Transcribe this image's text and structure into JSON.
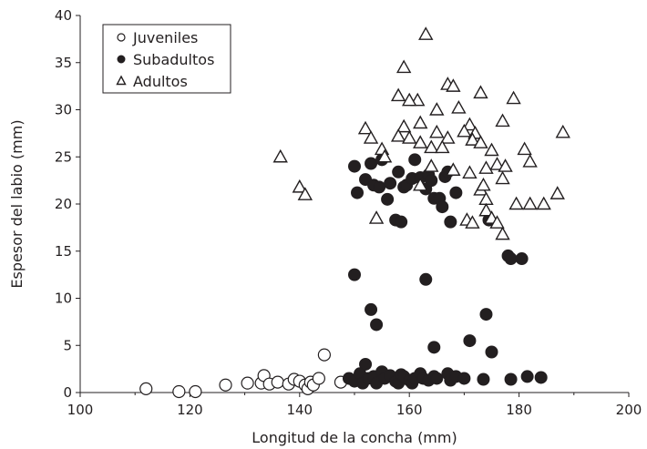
{
  "chart_data": {
    "type": "scatter",
    "xlabel": "Longitud de la concha (mm)",
    "ylabel": "Espesor del labio (mm)",
    "xlim": [
      100,
      200
    ],
    "ylim": [
      0,
      40
    ],
    "xticks": [
      100,
      120,
      140,
      160,
      180,
      200
    ],
    "yticks": [
      0,
      5,
      10,
      15,
      20,
      25,
      30,
      35,
      40
    ],
    "grid": false,
    "legend_position": "top-left",
    "series": [
      {
        "name": "Juveniles",
        "marker": "circle-open",
        "points": [
          [
            112,
            0.4
          ],
          [
            118,
            0.1
          ],
          [
            121,
            0.1
          ],
          [
            126.5,
            0.8
          ],
          [
            130.5,
            1.0
          ],
          [
            133,
            1.0
          ],
          [
            133.5,
            1.8
          ],
          [
            134.5,
            0.9
          ],
          [
            136,
            1.1
          ],
          [
            138,
            0.9
          ],
          [
            139,
            1.4
          ],
          [
            140,
            1.2
          ],
          [
            141,
            0.8
          ],
          [
            141.5,
            0.4
          ],
          [
            142,
            1.1
          ],
          [
            142.5,
            0.8
          ],
          [
            143.5,
            1.5
          ],
          [
            144.5,
            4.0
          ],
          [
            147.5,
            1.1
          ]
        ]
      },
      {
        "name": "Subadultos",
        "marker": "circle-filled",
        "points": [
          [
            150,
            24.0
          ],
          [
            150.5,
            21.2
          ],
          [
            152,
            22.6
          ],
          [
            153,
            24.3
          ],
          [
            153.5,
            22.0
          ],
          [
            154.5,
            21.8
          ],
          [
            155,
            24.7
          ],
          [
            156,
            20.5
          ],
          [
            156.5,
            22.2
          ],
          [
            157.5,
            18.3
          ],
          [
            158,
            23.4
          ],
          [
            158.5,
            18.1
          ],
          [
            159,
            21.8
          ],
          [
            159.5,
            22.0
          ],
          [
            160.5,
            22.7
          ],
          [
            161,
            24.7
          ],
          [
            162,
            22.8
          ],
          [
            163,
            21.6
          ],
          [
            163.5,
            23.1
          ],
          [
            164,
            22.5
          ],
          [
            164.5,
            20.6
          ],
          [
            165.5,
            20.6
          ],
          [
            166,
            19.7
          ],
          [
            166.5,
            22.9
          ],
          [
            167,
            23.4
          ],
          [
            167.5,
            18.1
          ],
          [
            168.5,
            21.2
          ],
          [
            174.5,
            18.3
          ],
          [
            178,
            14.5
          ],
          [
            178.5,
            14.2
          ],
          [
            180.5,
            14.2
          ],
          [
            150,
            12.5
          ],
          [
            153,
            8.8
          ],
          [
            154,
            7.2
          ],
          [
            163,
            12.0
          ],
          [
            164.5,
            4.8
          ],
          [
            171,
            5.5
          ],
          [
            174,
            8.3
          ],
          [
            175,
            4.3
          ],
          [
            149,
            1.5
          ],
          [
            150,
            1.2
          ],
          [
            151,
            2.0
          ],
          [
            151.5,
            1.0
          ],
          [
            152,
            3.0
          ],
          [
            152.5,
            1.5
          ],
          [
            153.5,
            1.7
          ],
          [
            154,
            1.0
          ],
          [
            155,
            2.2
          ],
          [
            155.5,
            1.5
          ],
          [
            156.5,
            1.8
          ],
          [
            157.5,
            1.2
          ],
          [
            158,
            1.0
          ],
          [
            158.5,
            1.9
          ],
          [
            159,
            1.7
          ],
          [
            160,
            1.3
          ],
          [
            160.5,
            1.0
          ],
          [
            161,
            1.5
          ],
          [
            162,
            2.0
          ],
          [
            162.5,
            1.5
          ],
          [
            163.5,
            1.3
          ],
          [
            164.5,
            1.7
          ],
          [
            165,
            1.5
          ],
          [
            167,
            2.0
          ],
          [
            167.5,
            1.3
          ],
          [
            168.5,
            1.7
          ],
          [
            170,
            1.5
          ],
          [
            173.5,
            1.4
          ],
          [
            178.5,
            1.4
          ],
          [
            181.5,
            1.7
          ],
          [
            184,
            1.6
          ]
        ]
      },
      {
        "name": "Adultos",
        "marker": "triangle-open",
        "points": [
          [
            163,
            38.0
          ],
          [
            159,
            34.5
          ],
          [
            167,
            32.7
          ],
          [
            168,
            32.5
          ],
          [
            173,
            31.8
          ],
          [
            158,
            31.5
          ],
          [
            161.5,
            31.0
          ],
          [
            160,
            31.0
          ],
          [
            179,
            31.2
          ],
          [
            165,
            30.0
          ],
          [
            169,
            30.2
          ],
          [
            162,
            28.6
          ],
          [
            171,
            28.4
          ],
          [
            177,
            28.8
          ],
          [
            159,
            28.2
          ],
          [
            188,
            27.6
          ],
          [
            152,
            28.0
          ],
          [
            165,
            27.6
          ],
          [
            170,
            27.7
          ],
          [
            172,
            27.5
          ],
          [
            158,
            27.2
          ],
          [
            160,
            27.0
          ],
          [
            153,
            27.0
          ],
          [
            167,
            27.0
          ],
          [
            171.5,
            26.8
          ],
          [
            162,
            26.5
          ],
          [
            164,
            26.0
          ],
          [
            166,
            26.0
          ],
          [
            173,
            26.5
          ],
          [
            155,
            25.8
          ],
          [
            175,
            25.7
          ],
          [
            181,
            25.8
          ],
          [
            136.5,
            25.0
          ],
          [
            155.5,
            25.0
          ],
          [
            176,
            24.2
          ],
          [
            182,
            24.5
          ],
          [
            164,
            24.0
          ],
          [
            174,
            23.8
          ],
          [
            177.5,
            24.0
          ],
          [
            168,
            23.6
          ],
          [
            171,
            23.3
          ],
          [
            177,
            22.7
          ],
          [
            140,
            21.8
          ],
          [
            141,
            21.0
          ],
          [
            173,
            21.5
          ],
          [
            173.5,
            22.0
          ],
          [
            187,
            21.1
          ],
          [
            162,
            22.0
          ],
          [
            174,
            20.5
          ],
          [
            179.5,
            20.0
          ],
          [
            182,
            20.0
          ],
          [
            184.5,
            20.0
          ],
          [
            174,
            19.3
          ],
          [
            170.5,
            18.3
          ],
          [
            171.5,
            18.0
          ],
          [
            175,
            18.5
          ],
          [
            176,
            18.0
          ],
          [
            177,
            16.8
          ],
          [
            154,
            18.5
          ]
        ]
      }
    ]
  }
}
